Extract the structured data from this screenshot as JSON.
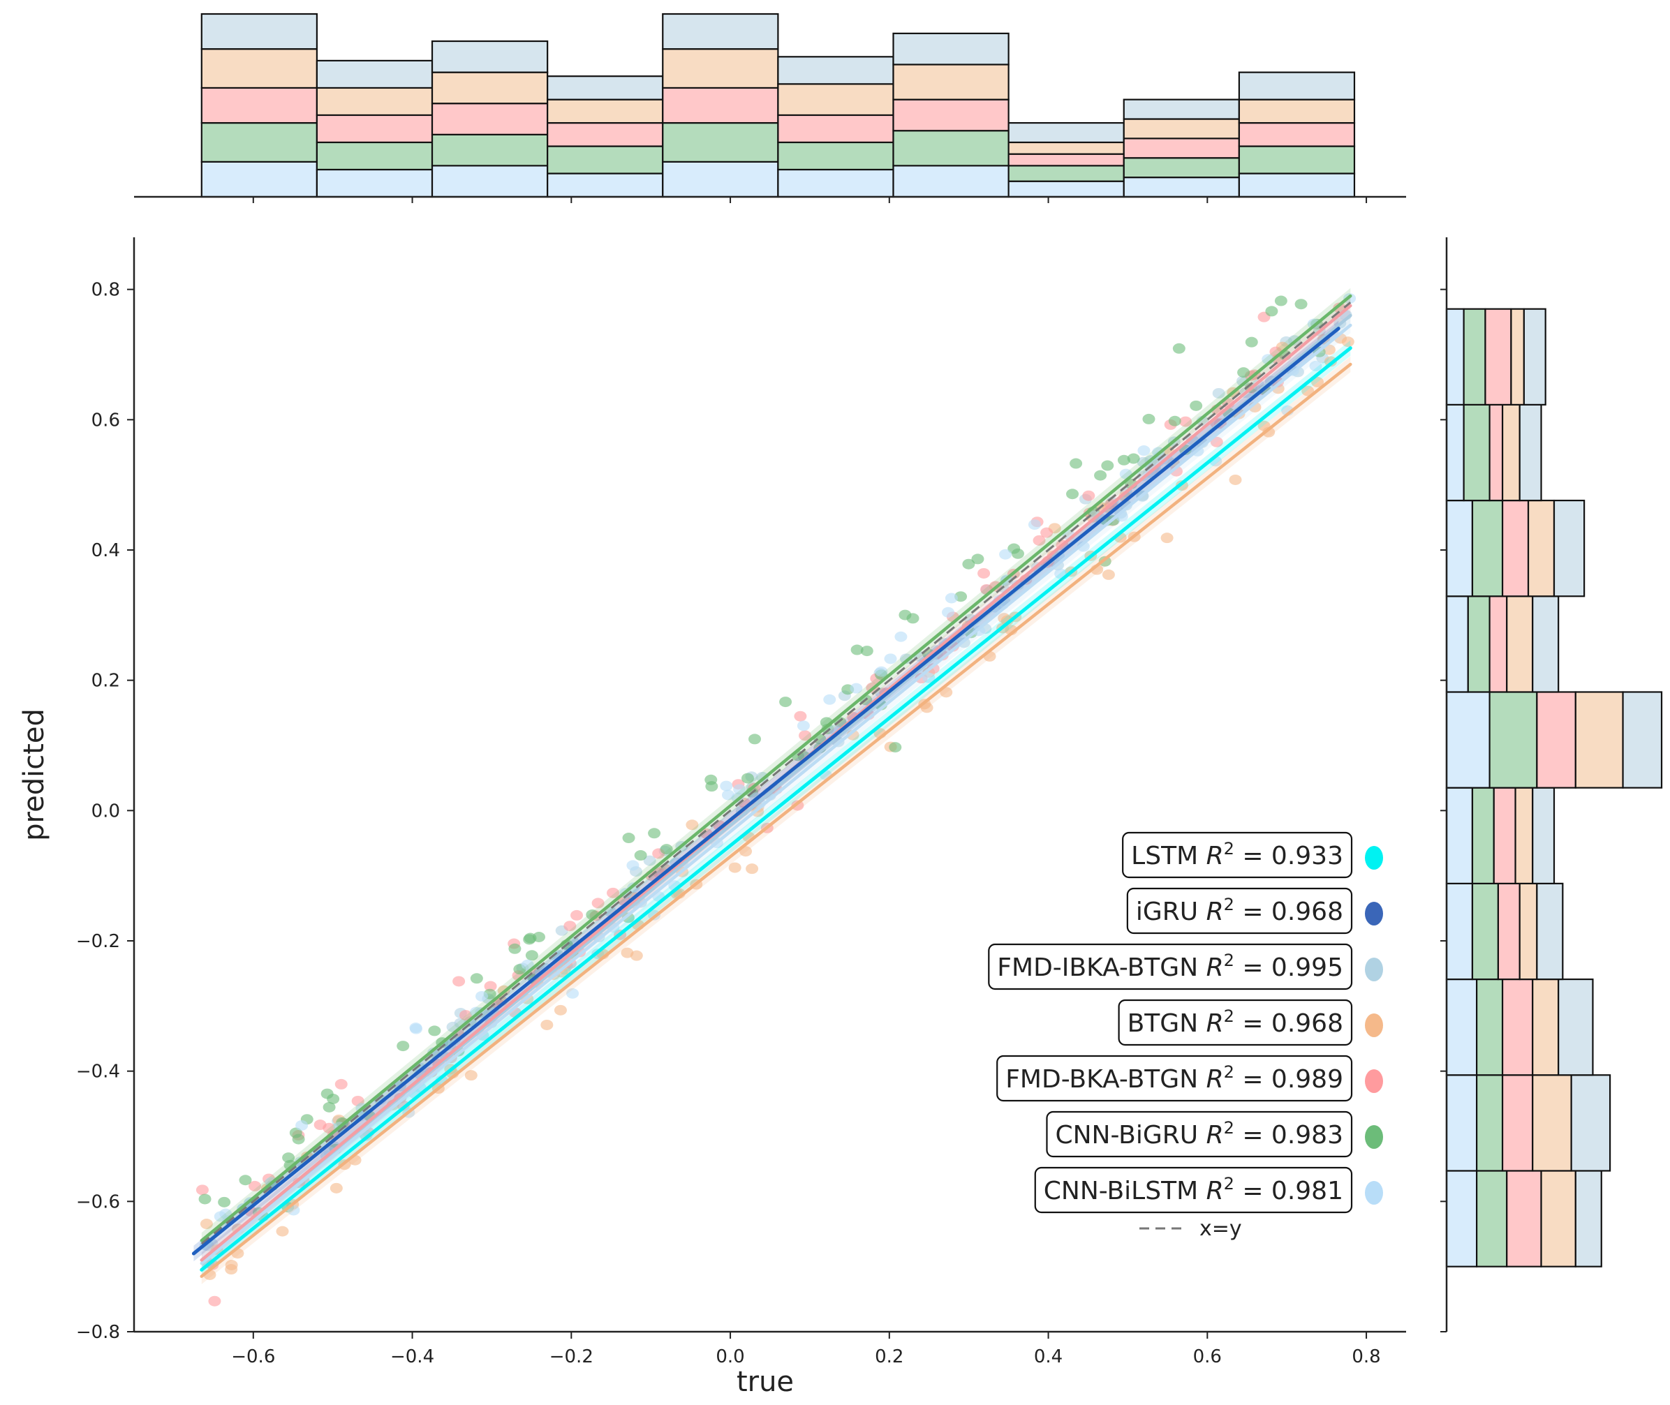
{
  "chart_data": {
    "type": "scatter",
    "title": "",
    "xlabel": "true",
    "ylabel": "predicted",
    "xlim": [
      -0.75,
      0.85
    ],
    "ylim": [
      -0.8,
      0.88
    ],
    "xticks": [
      -0.6,
      -0.4,
      -0.2,
      0.0,
      0.2,
      0.4,
      0.6,
      0.8
    ],
    "yticks": [
      -0.8,
      -0.6,
      -0.4,
      -0.2,
      0.0,
      0.2,
      0.4,
      0.6,
      0.8
    ],
    "xtick_labels": [
      "−0.6",
      "−0.4",
      "−0.2",
      "0.0",
      "0.2",
      "0.4",
      "0.6",
      "0.8"
    ],
    "ytick_labels": [
      "−0.8",
      "−0.6",
      "−0.4",
      "−0.2",
      "0.0",
      "0.2",
      "0.4",
      "0.6",
      "0.8"
    ],
    "series": [
      {
        "name": "LSTM",
        "r2": "0.933",
        "color": "#00f2f2",
        "fill": "#00f2f2",
        "fit": [
          [
            -0.665,
            -0.705
          ],
          [
            0.78,
            0.71
          ]
        ],
        "scatter_offset": -0.045
      },
      {
        "name": "iGRU",
        "r2": "0.968",
        "color": "#1f5fbf",
        "fill": "#3a66b8",
        "fit": [
          [
            -0.675,
            -0.68
          ],
          [
            0.765,
            0.74
          ]
        ],
        "scatter_offset": 0.0
      },
      {
        "name": "FMD-IBKA-BTGN",
        "r2": "0.995",
        "color": "#a9cbe0",
        "fill": "#b0d2e3",
        "fit": [
          [
            -0.665,
            -0.69
          ],
          [
            0.78,
            0.76
          ]
        ],
        "scatter_offset": -0.005
      },
      {
        "name": "BTGN",
        "r2": "0.968",
        "color": "#f2b27f",
        "fill": "#f5b98a",
        "fit": [
          [
            -0.665,
            -0.715
          ],
          [
            0.78,
            0.685
          ]
        ],
        "scatter_offset": -0.05
      },
      {
        "name": "FMD-BKA-BTGN",
        "r2": "0.989",
        "color": "#f49ea4",
        "fill": "#ff9b9e",
        "fit": [
          [
            -0.665,
            -0.69
          ],
          [
            0.78,
            0.775
          ]
        ],
        "scatter_offset": 0.0
      },
      {
        "name": "CNN-BiGRU",
        "r2": "0.983",
        "color": "#6ab76a",
        "fill": "#6cbc79",
        "fit": [
          [
            -0.665,
            -0.66
          ],
          [
            0.78,
            0.79
          ]
        ],
        "scatter_offset": 0.02
      },
      {
        "name": "CNN-BiLSTM",
        "r2": "0.981",
        "color": "#bcdcf4",
        "fill": "#b8ddf8",
        "fit": [
          [
            -0.665,
            -0.695
          ],
          [
            0.78,
            0.745
          ]
        ],
        "scatter_offset": -0.01
      }
    ],
    "reference_line": {
      "label": "x=y",
      "from": [
        -0.665,
        -0.665
      ],
      "to": [
        0.78,
        0.78
      ],
      "color": "#777777"
    },
    "marginal_x": {
      "bin_edges": [
        -0.665,
        -0.52,
        -0.375,
        -0.23,
        -0.085,
        0.06,
        0.205,
        0.35,
        0.495,
        0.64,
        0.785
      ],
      "stack_order": [
        "CNN-BiLSTM",
        "CNN-BiGRU",
        "FMD-BKA-BTGN",
        "BTGN",
        "FMD-IBKA-BTGN"
      ],
      "counts": [
        [
          9,
          10,
          9,
          10,
          9
        ],
        [
          7,
          7,
          7,
          7,
          7
        ],
        [
          8,
          8,
          8,
          8,
          8
        ],
        [
          6,
          7,
          6,
          6,
          6
        ],
        [
          9,
          10,
          9,
          10,
          9
        ],
        [
          7,
          7,
          7,
          8,
          7
        ],
        [
          8,
          9,
          8,
          9,
          8
        ],
        [
          4,
          4,
          3,
          3,
          5
        ],
        [
          5,
          5,
          5,
          5,
          5
        ],
        [
          6,
          7,
          6,
          6,
          7
        ]
      ],
      "colors": [
        "#d8ecfc",
        "#b4dcbc",
        "#ffc8c9",
        "#f8dcc3",
        "#d6e5ee"
      ]
    },
    "marginal_y": {
      "bin_edges": [
        -0.7,
        -0.553,
        -0.406,
        -0.259,
        -0.112,
        0.035,
        0.182,
        0.329,
        0.476,
        0.623,
        0.77
      ],
      "stack_order": [
        "CNN-BiLSTM",
        "CNN-BiGRU",
        "FMD-BKA-BTGN",
        "BTGN",
        "FMD-IBKA-BTGN"
      ],
      "counts": [
        [
          7,
          7,
          8,
          8,
          6
        ],
        [
          7,
          6,
          7,
          9,
          9
        ],
        [
          7,
          6,
          7,
          6,
          8
        ],
        [
          6,
          6,
          5,
          4,
          6
        ],
        [
          6,
          5,
          5,
          4,
          5
        ],
        [
          10,
          11,
          9,
          11,
          9
        ],
        [
          5,
          5,
          4,
          6,
          6
        ],
        [
          6,
          7,
          6,
          6,
          7
        ],
        [
          4,
          6,
          3,
          4,
          5
        ],
        [
          4,
          5,
          6,
          3,
          5
        ]
      ],
      "colors": [
        "#d8ecfc",
        "#b4dcbc",
        "#ffc8c9",
        "#f8dcc3",
        "#d6e5ee"
      ]
    }
  }
}
